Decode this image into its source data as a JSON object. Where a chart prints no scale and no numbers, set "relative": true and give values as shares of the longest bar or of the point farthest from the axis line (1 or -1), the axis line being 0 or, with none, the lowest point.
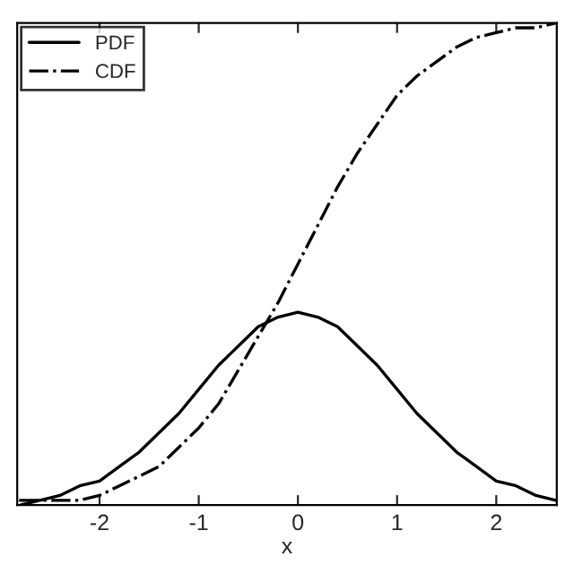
{
  "chart_data": {
    "type": "line",
    "xlabel": "x",
    "relative": true,
    "tick_labels": "x",
    "legend": "top left",
    "grid": false,
    "x": [
      -2.8,
      -2.6,
      -2.4,
      -2.2,
      -2.0,
      -1.8,
      -1.6,
      -1.4,
      -1.2,
      -1.0,
      -0.8,
      -0.6,
      -0.4,
      -0.2,
      0.0,
      0.2,
      0.4,
      0.6,
      0.8,
      1.0,
      1.2,
      1.4,
      1.6,
      1.8,
      2.0,
      2.2,
      2.4,
      2.6
    ],
    "xlim": [
      -2.83,
      2.61
    ],
    "xticks": [
      -2,
      -1,
      0,
      1,
      2
    ],
    "series": [
      {
        "name": "PDF",
        "color": "#000000",
        "line_style": "solid",
        "values": [
          0.01,
          0.01,
          0.02,
          0.04,
          0.05,
          0.08,
          0.11,
          0.15,
          0.19,
          0.24,
          0.29,
          0.33,
          0.37,
          0.39,
          0.4,
          0.39,
          0.37,
          0.33,
          0.29,
          0.24,
          0.19,
          0.15,
          0.11,
          0.08,
          0.05,
          0.04,
          0.02,
          0.01
        ]
      },
      {
        "name": "CDF",
        "color": "#000000",
        "line_style": "dashdot",
        "values": [
          0.0,
          0.01,
          0.01,
          0.01,
          0.02,
          0.04,
          0.06,
          0.08,
          0.12,
          0.16,
          0.21,
          0.28,
          0.35,
          0.42,
          0.5,
          0.58,
          0.66,
          0.73,
          0.79,
          0.85,
          0.89,
          0.92,
          0.95,
          0.97,
          0.98,
          0.99,
          0.99,
          1.0
        ]
      }
    ]
  }
}
